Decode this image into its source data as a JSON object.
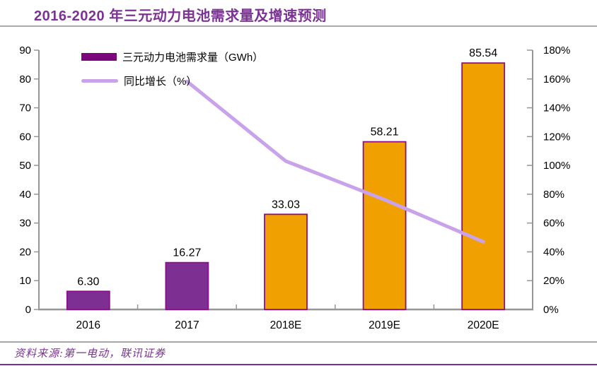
{
  "title": "2016-2020 年三元动力电池需求量及增速预测",
  "source_note": "资料来源:第一电动，联讯证券",
  "colors": {
    "title_text": "#7B3294",
    "source_text": "#7B3294",
    "bar_purple": "#7D3092",
    "bar_orange": "#F0A000",
    "bar_border": "#8B0F8B",
    "growth_line": "#C9A3EA",
    "legend_bar_swatch": "#7C067C",
    "axis_line": "#969696",
    "tick_text": "#000000",
    "title_rule": "#ABABAB",
    "footer_rule": "#A6A6A6",
    "bottom_rule": "#7030A0"
  },
  "legend": {
    "items": [
      {
        "label": "三元动力电池需求量（GWh）",
        "swatch": "bar"
      },
      {
        "label": "同比增长（%）",
        "swatch": "line"
      }
    ]
  },
  "chart_data": {
    "type": "bar",
    "title": "2016-2020 年三元动力电池需求量及增速预测",
    "categories": [
      "2016",
      "2017",
      "2018E",
      "2019E",
      "2020E"
    ],
    "series": [
      {
        "name": "三元动力电池需求量（GWh）",
        "type": "bar",
        "axis": "left",
        "values": [
          6.3,
          16.27,
          33.03,
          58.21,
          85.54
        ],
        "data_labels": [
          "6.30",
          "16.27",
          "33.03",
          "58.21",
          "85.54"
        ],
        "bar_fills": [
          "#7D3092",
          "#7D3092",
          "#F0A000",
          "#F0A000",
          "#F0A000"
        ]
      },
      {
        "name": "同比增长（%）",
        "type": "line",
        "axis": "right",
        "values": [
          null,
          158.3,
          103.0,
          76.2,
          47.0
        ]
      }
    ],
    "left_axis": {
      "min": 0,
      "max": 90,
      "tick_labels": [
        "0",
        "10",
        "20",
        "30",
        "40",
        "50",
        "60",
        "70",
        "80",
        "90"
      ]
    },
    "right_axis": {
      "min": 0,
      "max": 180,
      "tick_labels": [
        "0%",
        "20%",
        "40%",
        "60%",
        "80%",
        "100%",
        "120%",
        "140%",
        "160%",
        "180%"
      ]
    },
    "grid": false,
    "legend_position": "top-left"
  }
}
